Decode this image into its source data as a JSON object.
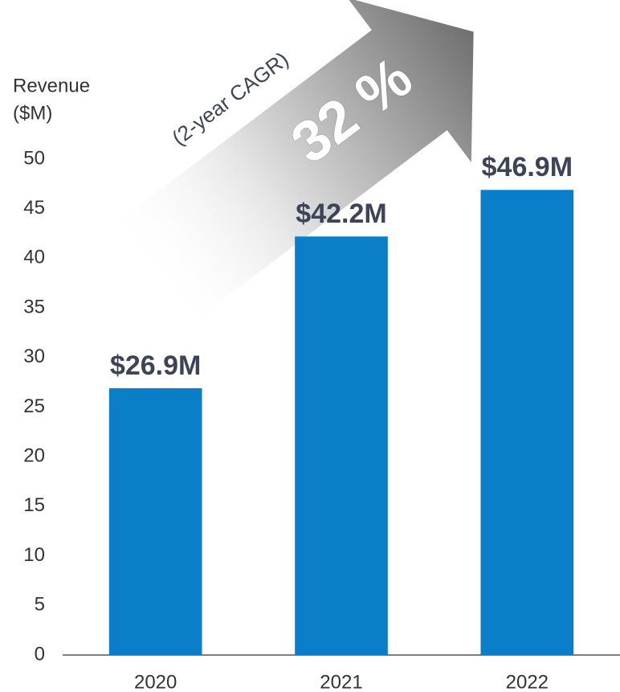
{
  "chart_data": {
    "type": "bar",
    "ylabel_lines": [
      "Revenue",
      "($M)"
    ],
    "categories": [
      "2020",
      "2021",
      "2022"
    ],
    "values": [
      26.9,
      42.2,
      46.9
    ],
    "value_labels": [
      "$26.9M",
      "$42.2M",
      "$46.9M"
    ],
    "color": "#0a7ec8",
    "ylim": [
      0,
      50
    ],
    "yticks": [
      0,
      5,
      10,
      15,
      20,
      25,
      30,
      35,
      40,
      45,
      50
    ],
    "grid": false,
    "annotations": {
      "cagr": "32 %",
      "cagr_note": "(2-year CAGR)"
    }
  }
}
